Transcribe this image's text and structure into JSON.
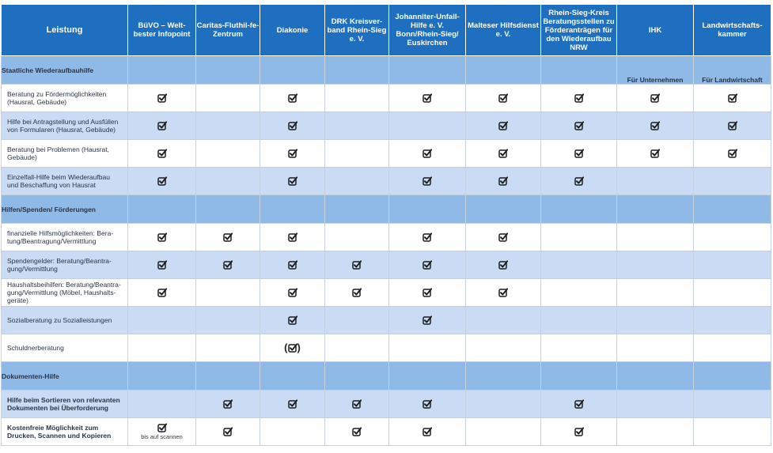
{
  "columns": [
    "Leistung",
    "BüVO – Welt-bester Infopoint",
    "Caritas-Fluthil-fe-Zentrum",
    "Diakonie",
    "DRK Kreisver-band Rhein-Sieg e. V.",
    "Johanniter-Unfall-Hilfe e. V. Bonn/Rhein-Sieg/ Euskirchen",
    "Malteser Hilfsdienst e. V.",
    "Rhein-Sieg-Kreis Beratungsstellen zu Förderanträgen für den Wiederaufbau NRW",
    "IHK",
    "Landwirtschafts-kammer"
  ],
  "check_icon": "checkbox-check-icon",
  "sections": [
    {
      "title": "Staatliche Wiederaufbauhilfe",
      "notes": [
        "",
        "",
        "",
        "",
        "",
        "",
        "",
        "Für Unternehmen",
        "Für Landwirtschaft"
      ],
      "rows": [
        {
          "label": "Beratung zu Fördermöglichkeiten (Hausrat, Gebäude)",
          "bold": false,
          "cells": [
            "check",
            "",
            "check",
            "",
            "check",
            "check",
            "check",
            "check",
            "check"
          ],
          "notes": []
        },
        {
          "label": "Hilfe bei Antragstellung und Ausfüllen von Formularen (Hausrat, Gebäude)",
          "bold": false,
          "cells": [
            "check",
            "",
            "check",
            "",
            "",
            "check",
            "check",
            "check",
            "check"
          ],
          "notes": []
        },
        {
          "label": "Beratung bei Problemen (Hausrat, Gebäude)",
          "bold": false,
          "cells": [
            "check",
            "",
            "check",
            "",
            "check",
            "check",
            "check",
            "check",
            "check"
          ],
          "notes": []
        },
        {
          "label": "Einzelfall-Hilfe beim Wiederaufbau und Beschaffung von Hausrat",
          "bold": false,
          "cells": [
            "check",
            "",
            "check",
            "",
            "check",
            "check",
            "check",
            "",
            ""
          ],
          "notes": []
        }
      ]
    },
    {
      "title": "Hilfen/Spenden/ Förderungen",
      "notes": [
        "",
        "",
        "",
        "",
        "",
        "",
        "",
        "",
        ""
      ],
      "rows": [
        {
          "label": "finanzielle Hilfsmöglichkeiten: Bera-tung/Beantragung/Vermittlung",
          "bold": false,
          "cells": [
            "check",
            "check",
            "check",
            "",
            "check",
            "check",
            "",
            "",
            ""
          ],
          "notes": []
        },
        {
          "label": "Spendengelder: Beratung/Beantra-gung/Vermittlung",
          "bold": false,
          "cells": [
            "check",
            "check",
            "check",
            "check",
            "check",
            "check",
            "",
            "",
            ""
          ],
          "notes": []
        },
        {
          "label": "Haushaltsbeihilfen: Beratung/Beantra-gung/Vermittlung (Möbel, Haushalts-geräte)",
          "bold": false,
          "cells": [
            "check",
            "",
            "check",
            "check",
            "check",
            "check",
            "",
            "",
            ""
          ],
          "notes": []
        },
        {
          "label": "Sozialberatung zu Sozialleistungen",
          "bold": false,
          "cells": [
            "",
            "",
            "check",
            "",
            "check",
            "",
            "",
            "",
            ""
          ],
          "notes": []
        },
        {
          "label": "Schuldnerberatung",
          "bold": false,
          "cells": [
            "",
            "",
            "check-paren",
            "",
            "",
            "",
            "",
            "",
            ""
          ],
          "notes": []
        }
      ]
    },
    {
      "title": "Dokumenten-Hilfe",
      "notes": [
        "",
        "",
        "",
        "",
        "",
        "",
        "",
        "",
        ""
      ],
      "rows": [
        {
          "label": "Hilfe beim Sortieren von relevanten Dokumenten bei Überforderung",
          "bold": true,
          "cells": [
            "",
            "check",
            "check",
            "check",
            "check",
            "",
            "check",
            "",
            ""
          ],
          "notes": []
        },
        {
          "label": "Kostenfreie Möglichkeit zum Drucken, Scannen und Kopieren",
          "bold": true,
          "cells": [
            "check",
            "check",
            "",
            "check",
            "check",
            "",
            "check",
            "",
            ""
          ],
          "notes": [
            "bis auf scannen"
          ]
        }
      ]
    }
  ]
}
